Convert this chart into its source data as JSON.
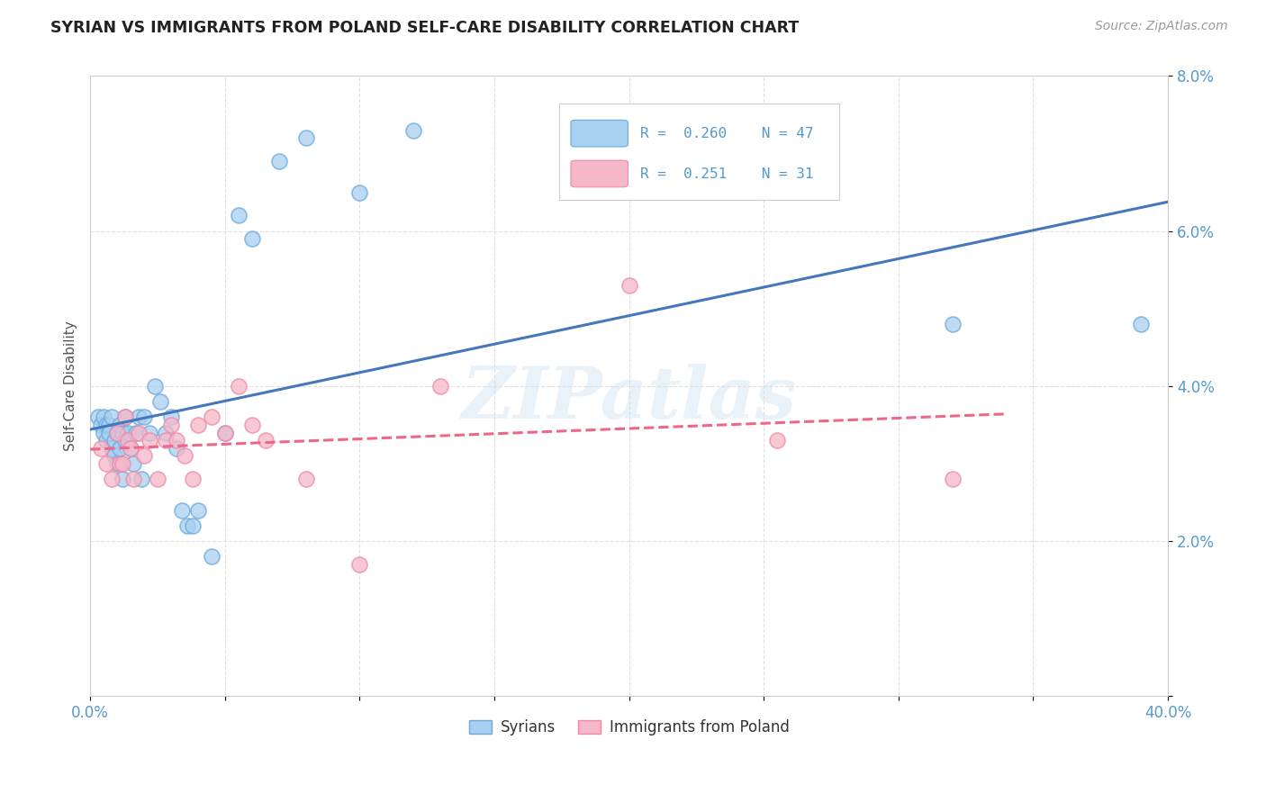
{
  "title": "SYRIAN VS IMMIGRANTS FROM POLAND SELF-CARE DISABILITY CORRELATION CHART",
  "source": "Source: ZipAtlas.com",
  "ylabel": "Self-Care Disability",
  "xlim": [
    0,
    0.4
  ],
  "ylim": [
    0,
    0.08
  ],
  "xticks": [
    0.0,
    0.05,
    0.1,
    0.15,
    0.2,
    0.25,
    0.3,
    0.35,
    0.4
  ],
  "xtick_labels": [
    "0.0%",
    "",
    "",
    "",
    "",
    "",
    "",
    "",
    "40.0%"
  ],
  "yticks": [
    0.0,
    0.02,
    0.04,
    0.06,
    0.08
  ],
  "ytick_labels": [
    "",
    "2.0%",
    "4.0%",
    "6.0%",
    "8.0%"
  ],
  "blue_R": "0.260",
  "blue_N": "47",
  "pink_R": "0.251",
  "pink_N": "31",
  "blue_fill": "#a8d0f0",
  "pink_fill": "#f5b8c8",
  "blue_edge": "#6aaade",
  "pink_edge": "#f088a8",
  "blue_line": "#4477BB",
  "pink_line": "#EE6688",
  "blue_points_x": [
    0.003,
    0.004,
    0.005,
    0.005,
    0.006,
    0.006,
    0.007,
    0.007,
    0.008,
    0.008,
    0.009,
    0.009,
    0.01,
    0.01,
    0.011,
    0.011,
    0.012,
    0.012,
    0.013,
    0.013,
    0.014,
    0.015,
    0.016,
    0.017,
    0.018,
    0.019,
    0.02,
    0.022,
    0.024,
    0.026,
    0.028,
    0.03,
    0.032,
    0.034,
    0.036,
    0.038,
    0.04,
    0.045,
    0.05,
    0.055,
    0.06,
    0.07,
    0.08,
    0.1,
    0.12,
    0.32,
    0.39
  ],
  "blue_points_y": [
    0.036,
    0.035,
    0.036,
    0.034,
    0.035,
    0.033,
    0.035,
    0.034,
    0.036,
    0.032,
    0.033,
    0.031,
    0.034,
    0.03,
    0.035,
    0.032,
    0.034,
    0.028,
    0.036,
    0.033,
    0.034,
    0.032,
    0.03,
    0.034,
    0.036,
    0.028,
    0.036,
    0.034,
    0.04,
    0.038,
    0.034,
    0.036,
    0.032,
    0.024,
    0.022,
    0.022,
    0.024,
    0.018,
    0.034,
    0.062,
    0.059,
    0.069,
    0.072,
    0.065,
    0.073,
    0.048,
    0.048
  ],
  "pink_points_x": [
    0.004,
    0.006,
    0.008,
    0.01,
    0.011,
    0.012,
    0.013,
    0.014,
    0.015,
    0.016,
    0.018,
    0.02,
    0.022,
    0.025,
    0.028,
    0.03,
    0.032,
    0.035,
    0.038,
    0.04,
    0.045,
    0.05,
    0.055,
    0.06,
    0.065,
    0.08,
    0.1,
    0.13,
    0.2,
    0.255,
    0.32
  ],
  "pink_points_y": [
    0.032,
    0.03,
    0.028,
    0.034,
    0.03,
    0.03,
    0.036,
    0.033,
    0.032,
    0.028,
    0.034,
    0.031,
    0.033,
    0.028,
    0.033,
    0.035,
    0.033,
    0.031,
    0.028,
    0.035,
    0.036,
    0.034,
    0.04,
    0.035,
    0.033,
    0.028,
    0.017,
    0.04,
    0.053,
    0.033,
    0.028
  ],
  "watermark": "ZIPatlas",
  "background_color": "#ffffff",
  "grid_color": "#dddddd",
  "tick_color": "#5599CC"
}
